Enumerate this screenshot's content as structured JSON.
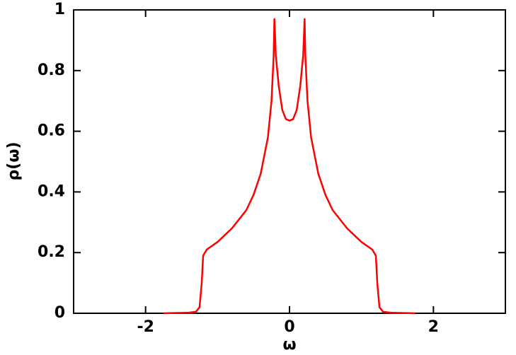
{
  "chart_data": {
    "type": "line",
    "x_label": "ω",
    "y_label": "ρ(ω)",
    "xlim": [
      -3,
      3
    ],
    "ylim": [
      0,
      1
    ],
    "xticks": [
      -2,
      0,
      2
    ],
    "yticks": [
      0,
      0.2,
      0.4,
      0.6,
      0.8,
      1
    ],
    "grid": false,
    "x": [
      -1.75,
      -1.4,
      -1.3,
      -1.25,
      -1.22,
      -1.2,
      -1.15,
      -1.0,
      -0.8,
      -0.6,
      -0.5,
      -0.4,
      -0.3,
      -0.25,
      -0.22,
      -0.21,
      -0.19,
      -0.15,
      -0.1,
      -0.05,
      0,
      0.05,
      0.1,
      0.15,
      0.19,
      0.21,
      0.22,
      0.25,
      0.3,
      0.4,
      0.5,
      0.6,
      0.8,
      1.0,
      1.15,
      1.2,
      1.22,
      1.25,
      1.3,
      1.4,
      1.75
    ],
    "series": [
      {
        "color": "#ff0000",
        "values": [
          0,
          0.002,
          0.005,
          0.02,
          0.1,
          0.19,
          0.21,
          0.235,
          0.28,
          0.34,
          0.39,
          0.46,
          0.58,
          0.7,
          0.85,
          0.97,
          0.85,
          0.75,
          0.67,
          0.64,
          0.635,
          0.64,
          0.67,
          0.75,
          0.85,
          0.97,
          0.85,
          0.7,
          0.58,
          0.46,
          0.39,
          0.34,
          0.28,
          0.235,
          0.21,
          0.19,
          0.1,
          0.02,
          0.005,
          0.002,
          0
        ]
      }
    ]
  }
}
